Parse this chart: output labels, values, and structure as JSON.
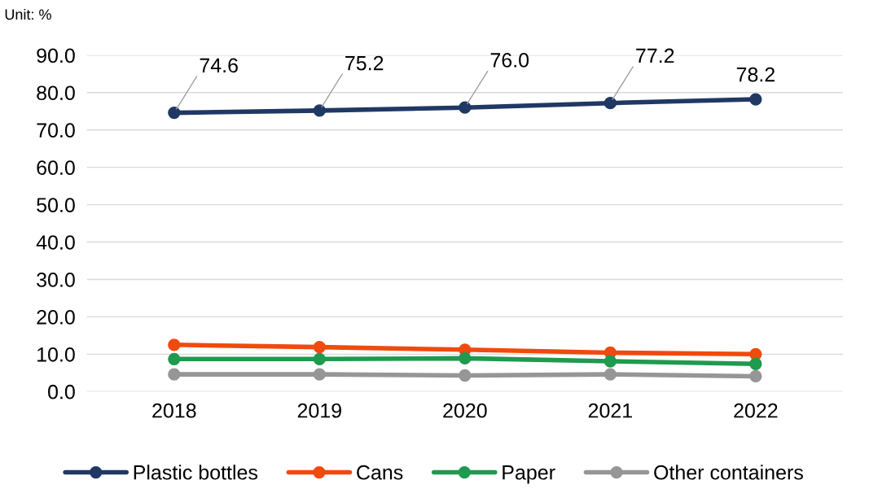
{
  "chart_data": {
    "type": "line",
    "annotations": [
      "Unit: %"
    ],
    "categories": [
      "2018",
      "2019",
      "2020",
      "2021",
      "2022"
    ],
    "series": [
      {
        "name": "Plastic bottles",
        "color": "#203864",
        "values": [
          74.6,
          75.2,
          76.0,
          77.2,
          78.2
        ],
        "value_labels": [
          "74.6",
          "75.2",
          "76.0",
          "77.2",
          "78.2"
        ]
      },
      {
        "name": "Cans",
        "color": "#f04a0e",
        "values": [
          12.5,
          11.9,
          11.2,
          10.4,
          10.0
        ]
      },
      {
        "name": "Paper",
        "color": "#1f9a4f",
        "values": [
          8.7,
          8.7,
          8.9,
          8.1,
          7.4
        ]
      },
      {
        "name": "Other containers",
        "color": "#969696",
        "values": [
          4.6,
          4.6,
          4.3,
          4.6,
          4.1
        ]
      }
    ],
    "ylim": [
      0,
      90
    ],
    "yticks": [
      {
        "value": 0,
        "label": "0.0"
      },
      {
        "value": 10,
        "label": "10.0"
      },
      {
        "value": 20,
        "label": "20.0"
      },
      {
        "value": 30,
        "label": "30.0"
      },
      {
        "value": 40,
        "label": "40.0"
      },
      {
        "value": 50,
        "label": "50.0"
      },
      {
        "value": 60,
        "label": "60.0"
      },
      {
        "value": 70,
        "label": "70.0"
      },
      {
        "value": 80,
        "label": "80.0"
      },
      {
        "value": 90,
        "label": "90.0"
      }
    ],
    "grid": "y",
    "legend": "bottom",
    "marker": "circle",
    "line_style": "solid"
  }
}
